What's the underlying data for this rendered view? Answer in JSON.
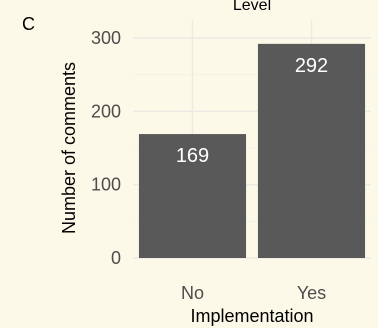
{
  "panel_tag": "C",
  "chart_data": {
    "type": "bar",
    "title": "Level",
    "xlabel": "Implementation",
    "ylabel": "Number of comments",
    "categories": [
      "No",
      "Yes"
    ],
    "values": [
      169,
      292
    ],
    "value_labels": [
      "169",
      "292"
    ],
    "ylim": [
      0,
      320
    ],
    "yticks": [
      0,
      100,
      200,
      300
    ],
    "ytick_labels": [
      "0",
      "100",
      "200",
      "300"
    ],
    "grid": true,
    "legend": "none",
    "colors": {
      "bar": "#595959",
      "background": "#fdf9e8",
      "grid": "#ebebe3",
      "bar_label": "#ffffff"
    }
  }
}
